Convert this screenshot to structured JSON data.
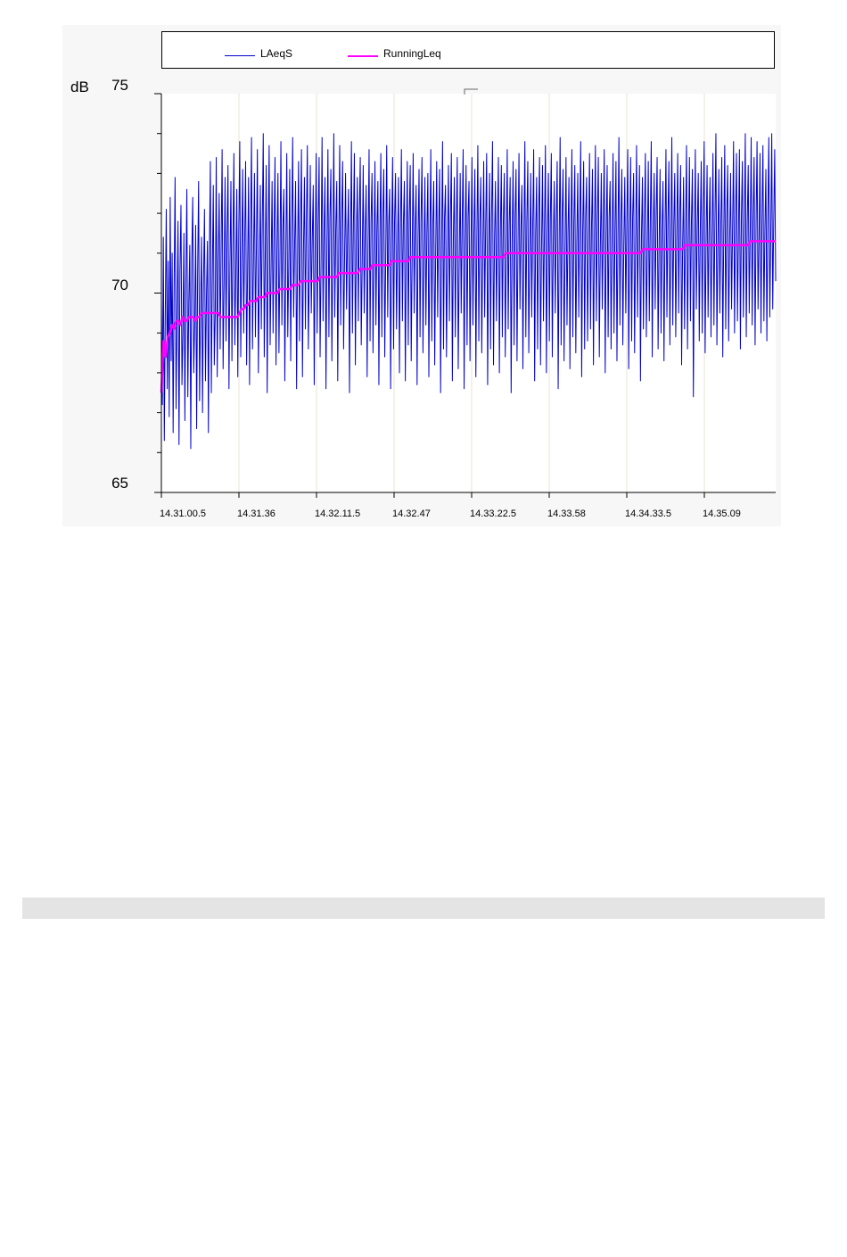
{
  "chart_data": {
    "type": "line",
    "title": "",
    "xlabel": "",
    "ylabel": "dB",
    "ylim": [
      65,
      75
    ],
    "yticks": [
      {
        "value": 75,
        "label": "75"
      },
      {
        "value": 70,
        "label": "70"
      },
      {
        "value": 65,
        "label": "65"
      }
    ],
    "x_tick_labels": [
      "14.31.00.5",
      "14.31.36",
      "14.32.11.5",
      "14.32.47",
      "14.33.22.5",
      "14.33.58",
      "14.34.33.5",
      "14.35.09"
    ],
    "x_start": "14.31.00.5",
    "x_end": "14.35.45",
    "x_step_seconds": 0.5,
    "grid": "vertical",
    "legend": {
      "placement": "top",
      "entries": [
        "LAeqS",
        "RunningLeq"
      ]
    },
    "series": [
      {
        "name": "LAeqS",
        "color": "#0000cc",
        "values": [
          69.8,
          67.2,
          71.4,
          66.3,
          69.5,
          72.1,
          67.6,
          70.8,
          66.9,
          72.4,
          68.3,
          71.0,
          66.5,
          70.2,
          72.9,
          67.1,
          69.4,
          71.8,
          66.2,
          70.6,
          72.2,
          67.7,
          69.0,
          71.5,
          66.8,
          70.3,
          72.6,
          67.4,
          69.8,
          71.2,
          66.1,
          70.9,
          72.4,
          68.0,
          69.2,
          71.7,
          66.6,
          70.5,
          72.8,
          67.3,
          69.6,
          71.4,
          67.0,
          70.2,
          72.1,
          67.8,
          69.9,
          71.3,
          66.5,
          71.0,
          73.3,
          67.5,
          70.4,
          72.7,
          68.2,
          69.5,
          73.4,
          67.9,
          70.8,
          72.5,
          68.6,
          71.1,
          73.6,
          68.1,
          70.3,
          72.9,
          68.8,
          71.4,
          73.2,
          67.6,
          70.7,
          72.8,
          68.3,
          71.2,
          73.5,
          68.7,
          70.5,
          72.6,
          67.9,
          71.6,
          73.8,
          68.4,
          70.9,
          73.1,
          69.0,
          71.3,
          73.3,
          68.2,
          70.6,
          72.9,
          67.7,
          71.5,
          73.9,
          68.6,
          70.8,
          73.0,
          68.9,
          71.2,
          73.6,
          68.0,
          70.4,
          72.7,
          69.1,
          71.7,
          74.0,
          68.4,
          70.9,
          73.2,
          67.5,
          71.3,
          73.7,
          68.7,
          70.6,
          72.8,
          69.0,
          71.5,
          73.4,
          68.2,
          71.1,
          73.0,
          68.5,
          70.8,
          73.8,
          69.2,
          71.6,
          72.6,
          67.8,
          71.0,
          73.5,
          68.9,
          70.7,
          73.1,
          68.3,
          71.4,
          73.9,
          69.4,
          71.2,
          72.8,
          67.6,
          70.9,
          73.3,
          68.8,
          71.6,
          73.6,
          67.9,
          71.0,
          72.9,
          69.1,
          71.8,
          73.7,
          68.6,
          70.5,
          73.2,
          69.5,
          71.3,
          72.7,
          67.7,
          71.1,
          73.5,
          69.0,
          71.7,
          73.4,
          68.4,
          70.8,
          73.9,
          69.3,
          71.5,
          72.9,
          67.6,
          71.2,
          73.6,
          68.9,
          71.9,
          73.1,
          68.3,
          71.0,
          74.0,
          69.4,
          71.6,
          72.8,
          67.8,
          71.3,
          73.7,
          69.2,
          71.8,
          73.3,
          68.6,
          70.9,
          73.0,
          69.6,
          71.4,
          72.6,
          67.5,
          71.1,
          73.8,
          69.0,
          71.7,
          73.5,
          68.2,
          71.3,
          72.9,
          69.3,
          71.9,
          73.4,
          68.7,
          70.8,
          73.2,
          69.5,
          71.5,
          72.7,
          67.9,
          71.2,
          73.6,
          68.8,
          71.8,
          73.0,
          68.5,
          71.0,
          73.3,
          69.2,
          71.6,
          72.8,
          67.7,
          71.4,
          73.5,
          68.9,
          71.9,
          73.1,
          68.4,
          70.9,
          73.7,
          69.4,
          71.7,
          72.6,
          67.6,
          71.3,
          73.4,
          68.6,
          71.8,
          73.0,
          69.1,
          71.1,
          72.9,
          68.0,
          71.5,
          73.6,
          69.3,
          71.7,
          72.8,
          67.8,
          71.2,
          73.3,
          68.7,
          71.9,
          73.2,
          68.3,
          71.0,
          73.5,
          69.5,
          71.6,
          72.7,
          67.7,
          71.4,
          73.1,
          68.9,
          71.8,
          73.4,
          68.5,
          70.9,
          72.9,
          69.2,
          71.5,
          73.0,
          67.9,
          71.3,
          73.6,
          68.8,
          71.7,
          72.8,
          68.2,
          71.1,
          73.3,
          69.4,
          71.6,
          73.1,
          67.5,
          71.2,
          73.8,
          68.6,
          71.9,
          72.7,
          68.4,
          71.0,
          73.2,
          69.3,
          71.8,
          73.5,
          67.8,
          71.4,
          72.9,
          68.9,
          71.6,
          73.4,
          68.1,
          70.8,
          73.0,
          69.5,
          71.7,
          73.6,
          67.6,
          71.3,
          73.2,
          68.7,
          71.9,
          72.8,
          68.3,
          71.1,
          73.4,
          69.2,
          71.5,
          73.1,
          67.9,
          71.4,
          73.7,
          68.8,
          71.8,
          72.9,
          68.5,
          71.0,
          73.3,
          69.4,
          71.7,
          73.5,
          67.7,
          71.2,
          73.0,
          68.6,
          71.9,
          73.8,
          68.2,
          71.3,
          72.8,
          69.3,
          71.6,
          73.4,
          68.0,
          71.5,
          73.2,
          68.9,
          71.8,
          73.0,
          68.4,
          71.1,
          73.6,
          69.1,
          71.7,
          72.9,
          67.5,
          71.3,
          73.3,
          68.7,
          71.9,
          73.1,
          68.3,
          71.2,
          73.5,
          69.6,
          71.6,
          72.7,
          68.1,
          71.4,
          73.8,
          68.9,
          71.8,
          73.3,
          68.5,
          71.0,
          73.0,
          69.4,
          71.7,
          73.6,
          67.8,
          71.5,
          72.9,
          68.6,
          71.9,
          73.4,
          68.2,
          71.1,
          73.2,
          69.3,
          71.6,
          73.7,
          68.0,
          71.4,
          73.0,
          68.8,
          71.8,
          73.5,
          68.4,
          71.2,
          72.8,
          69.5,
          71.7,
          73.3,
          67.6,
          71.3,
          73.9,
          68.7,
          71.9,
          73.1,
          68.3,
          71.0,
          73.4,
          69.2,
          71.5,
          72.9,
          68.1,
          71.6,
          73.6,
          68.9,
          71.8,
          73.2,
          68.5,
          71.3,
          73.0,
          69.4,
          71.7,
          73.8,
          67.9,
          71.5,
          73.3,
          68.6,
          71.9,
          72.9,
          68.8,
          71.2,
          73.5,
          69.1,
          71.6,
          73.1,
          68.2,
          71.4,
          73.7,
          69.3,
          71.8,
          73.4,
          68.4,
          71.1,
          73.0,
          69.6,
          71.7,
          73.6,
          68.0,
          71.5,
          73.2,
          68.9,
          71.9,
          72.8,
          68.6,
          71.3,
          73.5,
          69.0,
          71.6,
          73.3,
          68.3,
          71.4,
          73.9,
          69.2,
          71.8,
          73.1,
          68.7,
          71.2,
          72.9,
          69.5,
          71.7,
          73.6,
          68.1,
          71.5,
          73.4,
          68.8,
          71.9,
          73.0,
          68.5,
          71.3,
          73.7,
          69.4,
          71.6,
          73.2,
          67.8,
          71.4,
          72.9,
          69.1,
          71.8,
          73.5,
          68.9,
          71.1,
          73.3,
          69.3,
          71.7,
          73.8,
          68.4,
          71.5,
          73.0,
          69.6,
          71.9,
          73.4,
          68.6,
          71.2,
          73.1,
          69.0,
          71.6,
          72.8,
          68.3,
          71.4,
          73.6,
          69.4,
          71.8,
          73.3,
          68.7,
          71.3,
          73.9,
          69.2,
          71.7,
          73.0,
          68.9,
          71.5,
          73.5,
          69.5,
          71.9,
          73.2,
          68.2,
          71.1,
          72.9,
          69.1,
          71.6,
          73.7,
          68.6,
          71.4,
          73.4,
          69.3,
          71.8,
          73.1,
          67.4,
          71.2,
          73.6,
          69.6,
          71.7,
          73.0,
          68.8,
          71.5,
          73.3,
          69.0,
          71.9,
          73.8,
          68.5,
          71.3,
          73.2,
          69.4,
          71.6,
          72.9,
          68.9,
          71.4,
          73.5,
          69.2,
          71.8,
          74.0,
          68.7,
          71.2,
          73.1,
          69.5,
          71.7,
          73.4,
          68.4,
          71.5,
          73.7,
          69.1,
          71.9,
          73.2,
          68.8,
          71.3,
          73.0,
          69.6,
          71.6,
          73.8,
          69.0,
          71.8,
          73.5,
          69.3,
          71.4,
          73.6,
          68.6,
          71.9,
          73.3,
          69.4,
          71.6,
          74.0,
          68.9,
          71.8,
          73.2,
          69.5,
          71.5,
          73.9,
          69.2,
          71.9,
          73.4,
          68.7,
          71.7,
          73.8,
          69.6,
          71.3,
          73.5,
          69.0,
          71.8,
          73.7,
          69.3,
          71.6,
          73.1,
          68.8,
          71.9,
          73.9,
          69.4,
          71.5,
          74.0,
          69.6,
          71.8,
          73.6,
          70.3
        ],
        "note_values_per_step": 1
      },
      {
        "name": "RunningLeq",
        "color": "#ff00ff",
        "values": [
          67.5,
          68.8,
          68.4,
          68.9,
          69.0,
          69.2,
          69.1,
          69.3,
          69.3,
          69.2,
          69.4,
          69.3,
          69.3,
          69.4,
          69.4,
          69.4,
          69.3,
          69.4,
          69.4,
          69.5,
          69.5,
          69.5,
          69.5,
          69.5,
          69.5,
          69.5,
          69.5,
          69.5,
          69.4,
          69.4,
          69.4,
          69.4,
          69.4,
          69.4,
          69.4,
          69.4,
          69.4,
          69.5,
          69.6,
          69.6,
          69.7,
          69.7,
          69.8,
          69.8,
          69.8,
          69.8,
          69.9,
          69.9,
          69.9,
          69.9,
          70.0,
          70.0,
          70.0,
          70.0,
          70.0,
          70.0,
          70.1,
          70.1,
          70.1,
          70.1,
          70.1,
          70.1,
          70.2,
          70.2,
          70.2,
          70.2,
          70.3,
          70.3,
          70.3,
          70.3,
          70.3,
          70.3,
          70.3,
          70.3,
          70.3,
          70.4,
          70.4,
          70.4,
          70.4,
          70.4,
          70.4,
          70.4,
          70.4,
          70.4,
          70.5,
          70.5,
          70.5,
          70.5,
          70.5,
          70.5,
          70.5,
          70.5,
          70.5,
          70.5,
          70.6,
          70.6,
          70.6,
          70.6,
          70.6,
          70.6,
          70.7,
          70.7,
          70.7,
          70.7,
          70.7,
          70.7,
          70.7,
          70.7,
          70.7,
          70.8,
          70.8,
          70.8,
          70.8,
          70.8,
          70.8,
          70.8,
          70.8,
          70.8,
          70.9,
          70.9,
          70.9,
          70.9,
          70.9,
          70.9,
          70.9,
          70.9,
          70.9,
          70.9,
          70.9,
          70.9,
          70.9,
          70.9,
          70.9,
          70.9,
          70.9,
          70.9,
          70.9,
          70.9,
          70.9,
          70.9,
          70.9,
          70.9,
          70.9,
          70.9,
          70.9,
          70.9,
          70.9,
          70.9,
          70.9,
          70.9,
          70.9,
          70.9,
          70.9,
          70.9,
          70.9,
          70.9,
          70.9,
          70.9,
          70.9,
          70.9,
          70.9,
          70.9,
          70.9,
          71.0,
          71.0,
          71.0,
          71.0,
          71.0,
          71.0,
          71.0,
          71.0,
          71.0,
          71.0,
          71.0,
          71.0,
          71.0,
          71.0,
          71.0,
          71.0,
          71.0,
          71.0,
          71.0,
          71.0,
          71.0,
          71.0,
          71.0,
          71.0,
          71.0,
          71.0,
          71.0,
          71.0,
          71.0,
          71.0,
          71.0,
          71.0,
          71.0,
          71.0,
          71.0,
          71.0,
          71.0,
          71.0,
          71.0,
          71.0,
          71.0,
          71.0,
          71.0,
          71.0,
          71.0,
          71.0,
          71.0,
          71.0,
          71.0,
          71.0,
          71.0,
          71.0,
          71.0,
          71.0,
          71.0,
          71.0,
          71.0,
          71.0,
          71.0,
          71.0,
          71.0,
          71.0,
          71.0,
          71.0,
          71.0,
          71.1,
          71.1,
          71.1,
          71.1,
          71.1,
          71.1,
          71.1,
          71.1,
          71.1,
          71.1,
          71.1,
          71.1,
          71.1,
          71.1,
          71.1,
          71.1,
          71.1,
          71.1,
          71.1,
          71.1,
          71.2,
          71.2,
          71.2,
          71.2,
          71.2,
          71.2,
          71.2,
          71.2,
          71.2,
          71.2,
          71.2,
          71.2,
          71.2,
          71.2,
          71.2,
          71.2,
          71.2,
          71.2,
          71.2,
          71.2,
          71.2,
          71.2,
          71.2,
          71.2,
          71.2,
          71.2,
          71.2,
          71.2,
          71.2,
          71.2,
          71.2,
          71.3,
          71.3,
          71.3,
          71.3,
          71.3,
          71.3,
          71.3,
          71.3,
          71.3,
          71.3,
          71.3,
          71.3,
          71.3
        ]
      }
    ]
  }
}
